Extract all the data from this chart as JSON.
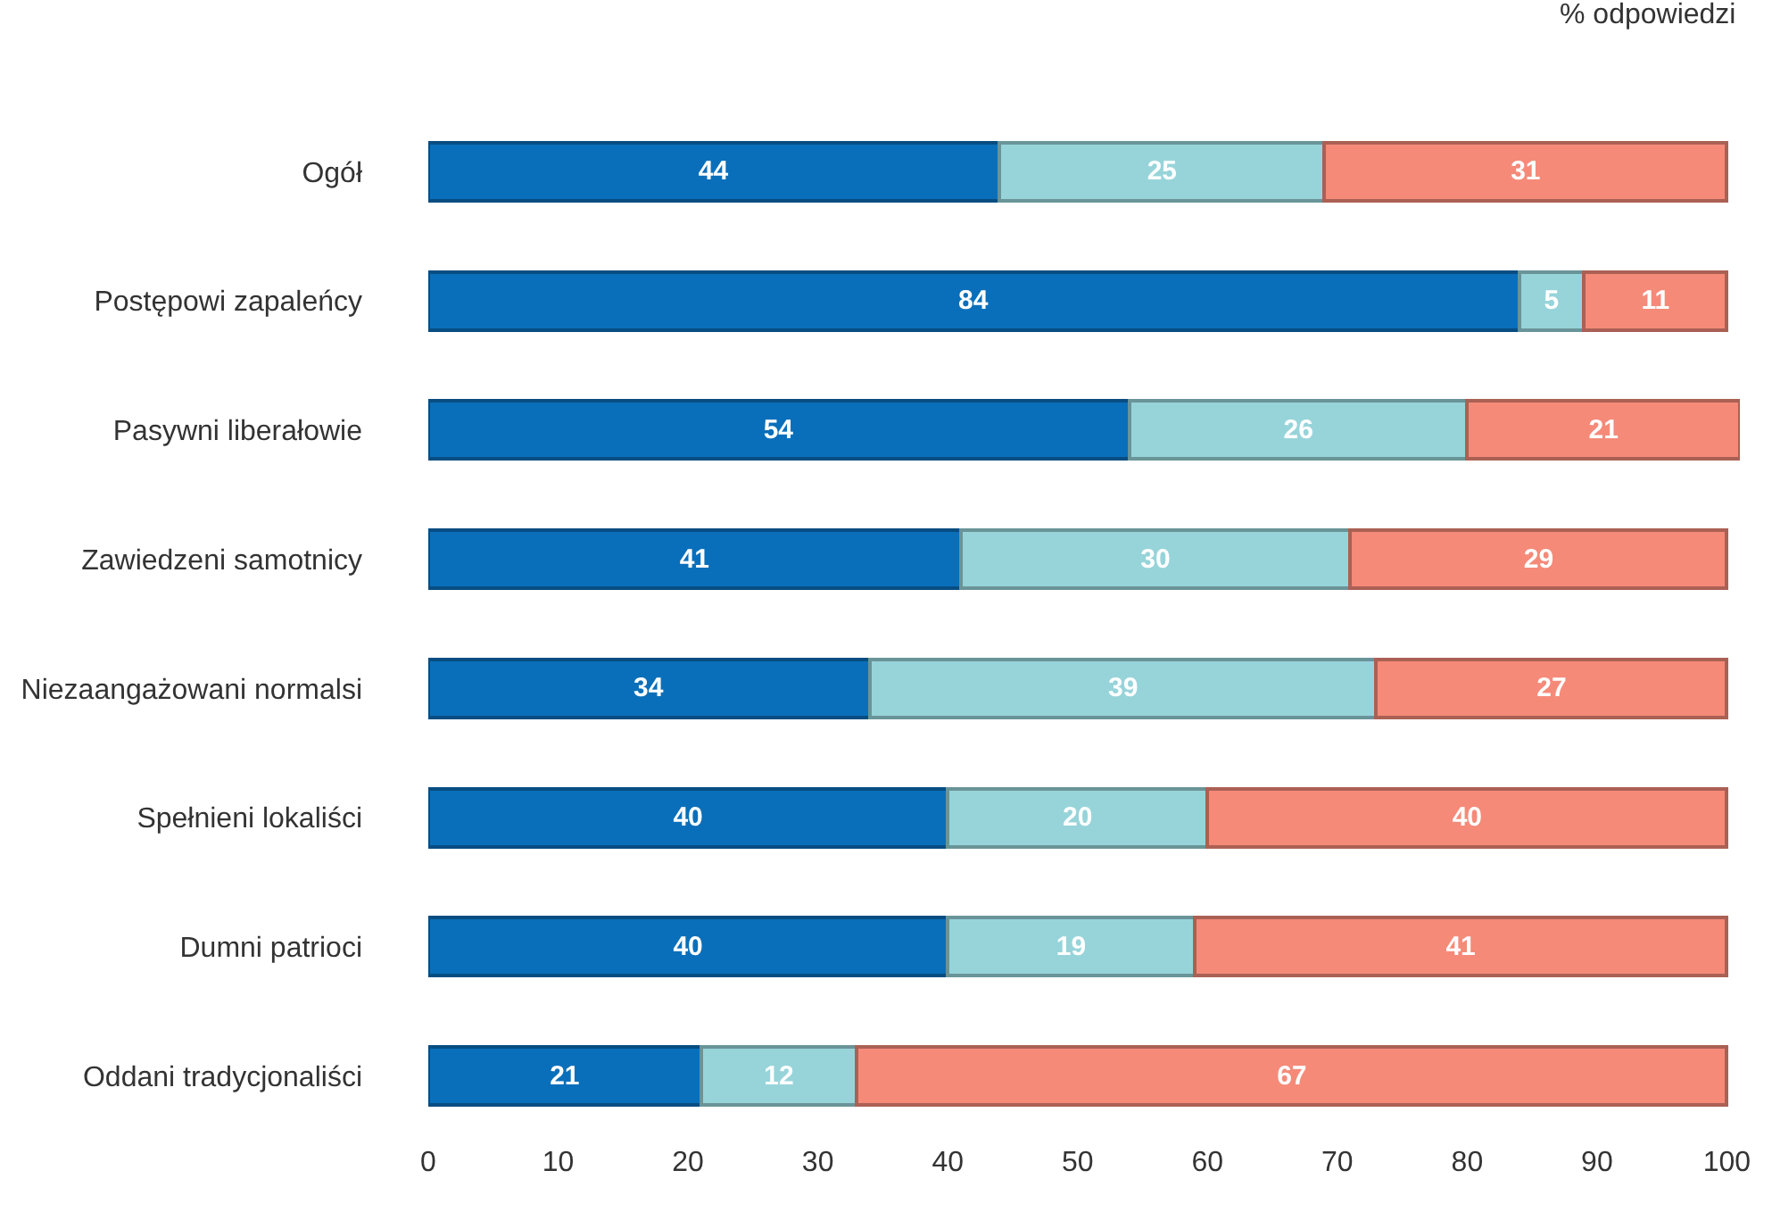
{
  "chart_data": {
    "type": "bar",
    "orientation": "horizontal",
    "stacked": true,
    "data_labels": true,
    "categories": [
      "Ogół",
      "Postępowi zapaleńcy",
      "Pasywni liberałowie",
      "Zawiedzeni samotnicy",
      "Niezaangażowani normalsi",
      "Spełnieni lokaliści",
      "Dumni patrioci",
      "Oddani tradycjonaliści"
    ],
    "series": [
      {
        "color": "#0a6fba",
        "values": [
          44,
          84,
          54,
          41,
          34,
          40,
          40,
          21
        ]
      },
      {
        "color": "#97d4da",
        "values": [
          25,
          5,
          26,
          30,
          39,
          20,
          19,
          12
        ]
      },
      {
        "color": "#f58a79",
        "values": [
          31,
          11,
          21,
          29,
          27,
          40,
          41,
          67
        ]
      }
    ],
    "xlim": [
      0,
      101
    ],
    "xticks": [
      0,
      10,
      20,
      30,
      40,
      50,
      60,
      70,
      80,
      90,
      100
    ],
    "annotations": [
      "% odpowiedzi"
    ]
  }
}
